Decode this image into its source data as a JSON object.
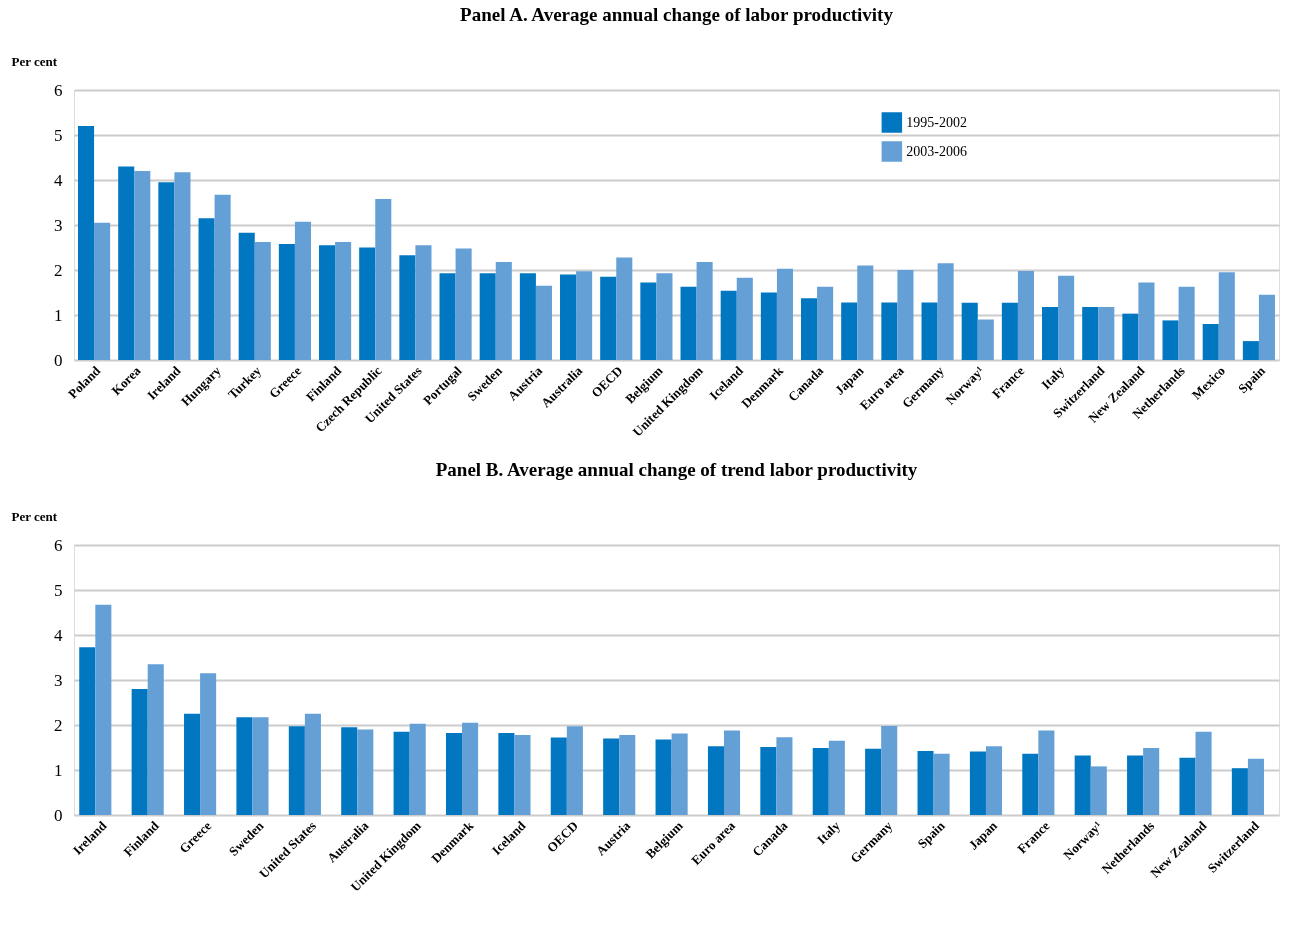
{
  "chart_data": [
    {
      "type": "bar",
      "title": "Panel A.  Average annual change of labor productivity",
      "ylabel": "Per cent",
      "categories": [
        "Poland",
        "Korea",
        "Ireland",
        "Hungary",
        "Turkey",
        "Greece",
        "Finland",
        "Czech Republic",
        "United States",
        "Portugal",
        "Sweden",
        "Austria",
        "Australia",
        "OECD",
        "Belgium",
        "United Kingdom",
        "Iceland",
        "Denmark",
        "Canada",
        "Japan",
        "Euro area",
        "Germany",
        "Norway¹",
        "France",
        "Italy",
        "Switzerland",
        "New Zealand",
        "Netherlands",
        "Mexico",
        "Spain"
      ],
      "series": [
        {
          "name": "1995-2002",
          "color": "#0077c0",
          "values": [
            5.2,
            4.3,
            3.95,
            3.15,
            2.83,
            2.58,
            2.55,
            2.5,
            2.33,
            1.93,
            1.93,
            1.93,
            1.9,
            1.85,
            1.72,
            1.63,
            1.54,
            1.5,
            1.37,
            1.28,
            1.28,
            1.28,
            1.27,
            1.27,
            1.18,
            1.18,
            1.03,
            0.88,
            0.8,
            0.42
          ]
        },
        {
          "name": "2003-2006",
          "color": "#64a0d6",
          "values": [
            3.05,
            4.2,
            4.17,
            3.67,
            2.62,
            3.07,
            2.62,
            3.58,
            2.55,
            2.48,
            2.18,
            1.65,
            1.97,
            2.28,
            1.93,
            2.18,
            1.83,
            2.03,
            1.63,
            2.1,
            2.0,
            2.15,
            0.9,
            1.98,
            1.87,
            1.18,
            1.72,
            1.63,
            1.95,
            1.45
          ]
        }
      ],
      "ylim": [
        0,
        6
      ],
      "yticks": [
        0,
        1,
        2,
        3,
        4,
        5,
        6
      ],
      "grid": "y",
      "legend": "top"
    },
    {
      "type": "bar",
      "title": "Panel B.  Average annual change of trend labor productivity",
      "ylabel": "Per cent",
      "categories": [
        "Ireland",
        "Finland",
        "Greece",
        "Sweden",
        "United States",
        "Australia",
        "United Kingdom",
        "Denmark",
        "Iceland",
        "OECD",
        "Austria",
        "Belgium",
        "Euro area",
        "Canada",
        "Italy",
        "Germany",
        "Spain",
        "Japan",
        "France",
        "Norway¹",
        "Netherlands",
        "New Zealand",
        "Switzerland"
      ],
      "series": [
        {
          "name": "1995-2002",
          "color": "#0077c0",
          "values": [
            3.73,
            2.8,
            2.25,
            2.17,
            1.97,
            1.95,
            1.85,
            1.82,
            1.82,
            1.72,
            1.7,
            1.68,
            1.53,
            1.51,
            1.49,
            1.47,
            1.42,
            1.41,
            1.36,
            1.32,
            1.32,
            1.27,
            1.04
          ]
        },
        {
          "name": "2003-2006",
          "color": "#64a0d6",
          "values": [
            4.67,
            3.35,
            3.15,
            2.17,
            2.25,
            1.9,
            2.03,
            2.05,
            1.78,
            1.97,
            1.78,
            1.81,
            1.88,
            1.73,
            1.65,
            1.98,
            1.36,
            1.53,
            1.88,
            1.08,
            1.49,
            1.85,
            1.25
          ]
        }
      ],
      "ylim": [
        0,
        6
      ],
      "yticks": [
        0,
        1,
        2,
        3,
        4,
        5,
        6
      ],
      "grid": "y",
      "legend": "top"
    }
  ]
}
